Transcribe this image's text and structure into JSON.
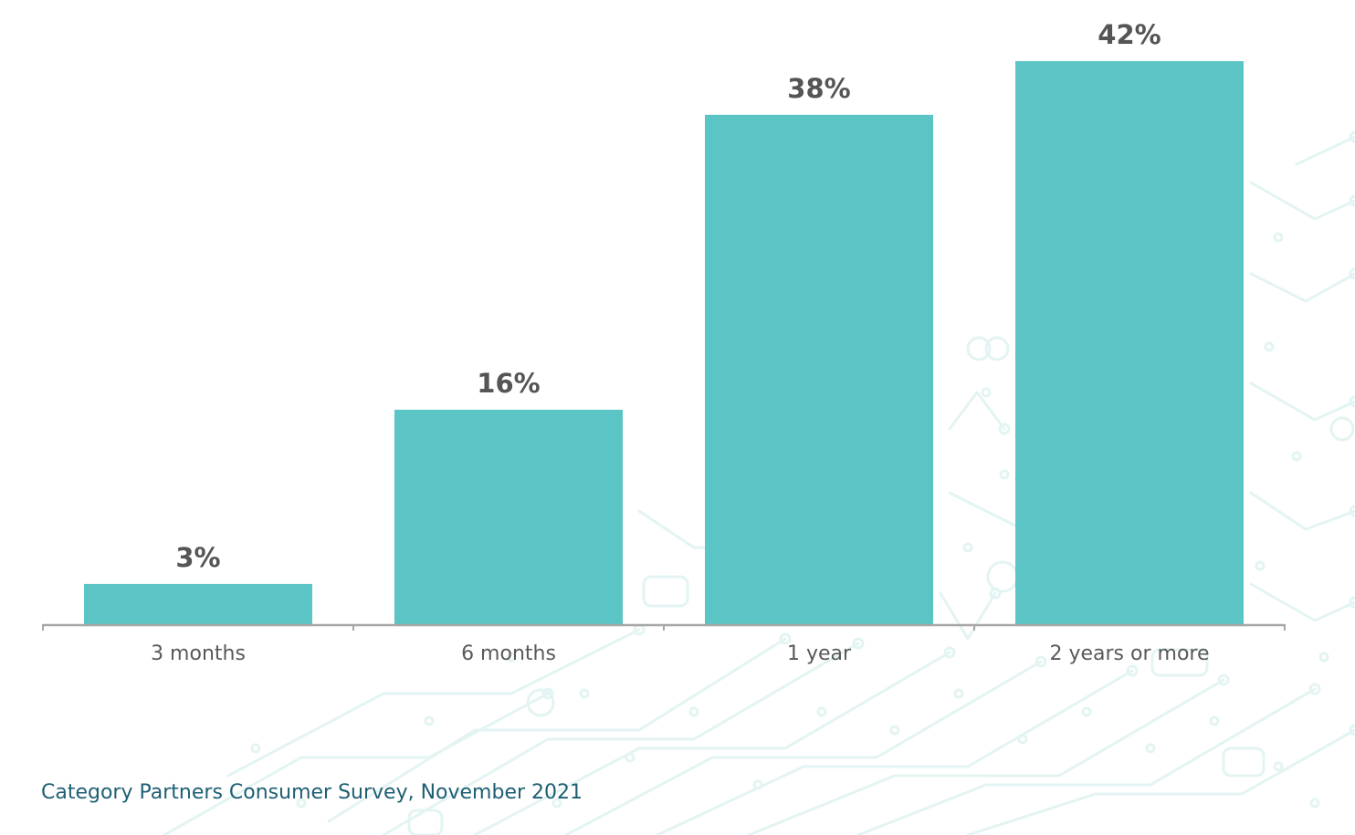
{
  "chart_data": {
    "type": "bar",
    "categories": [
      "3 months",
      "6 months",
      "1 year",
      "2 years or more"
    ],
    "values": [
      3,
      16,
      38,
      42
    ],
    "value_labels": [
      "3%",
      "16%",
      "38%",
      "42%"
    ],
    "title": "",
    "xlabel": "",
    "ylabel": "",
    "ylim": [
      0,
      42
    ],
    "grid": false,
    "legend": "none",
    "bar_color": "#5bc4c4",
    "axis_color": "#a6a6a6"
  },
  "source": "Category Partners Consumer Survey, November 2021",
  "colors": {
    "pattern": "#e3f4f3",
    "source_text": "#1d5f73"
  }
}
